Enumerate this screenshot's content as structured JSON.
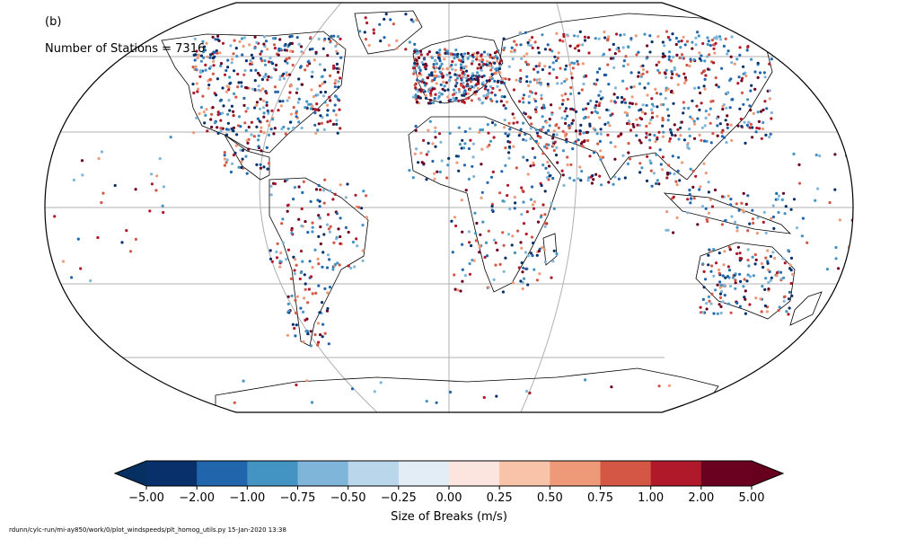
{
  "panel_label": "(b)",
  "station_count_label": "Number of Stations = 7316",
  "colorbar": {
    "label": "Size of Breaks (m/s)",
    "ticks": [
      "−5.00",
      "−2.00",
      "−1.00",
      "−0.75",
      "−0.50",
      "−0.25",
      "0.00",
      "0.25",
      "0.50",
      "0.75",
      "1.00",
      "2.00",
      "5.00"
    ],
    "colors": [
      "#08306b",
      "#2166ac",
      "#4393c3",
      "#7fb5d8",
      "#b9d6ea",
      "#e2edf6",
      "#fce5de",
      "#f8c3a8",
      "#ee9a78",
      "#d45645",
      "#b0192a",
      "#6b0121"
    ],
    "under_color": "#053061",
    "over_color": "#67001f"
  },
  "footer": "rdunn/cylc-run/mi-ay850/work/0/plot_windspeeds/plt_homog_utils.py   15-Jan-2020 13:38",
  "map": {
    "projection": "Robinson",
    "gridlines": true
  }
}
